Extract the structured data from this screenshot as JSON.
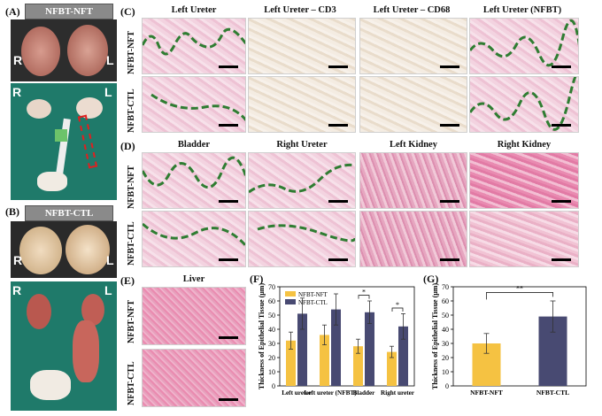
{
  "panels": {
    "A": {
      "tag": "(A)",
      "title": "NFBT-NFT",
      "R": "R",
      "L": "L"
    },
    "B": {
      "tag": "(B)",
      "title": "NFBT-CTL",
      "R": "R",
      "L": "L"
    },
    "C": {
      "tag": "(C)",
      "cols": [
        "Left Ureter",
        "Left Ureter – CD3",
        "Left Ureter – CD68",
        "Left Ureter  (NFBT)"
      ],
      "rows": [
        "NFBT-NFT",
        "NFBT-CTL"
      ]
    },
    "D": {
      "tag": "(D)",
      "cols": [
        "Bladder",
        "Right Ureter",
        "Left Kidney",
        "Right Kidney"
      ],
      "rows": [
        "NFBT-NFT",
        "NFBT-CTL"
      ]
    },
    "E": {
      "tag": "(E)",
      "title": "Liver",
      "rows": [
        "NFBT-NFT",
        "NFBT-CTL"
      ]
    },
    "F": {
      "tag": "(F)"
    },
    "G": {
      "tag": "(G)"
    }
  },
  "chart_data": [
    {
      "id": "F",
      "type": "bar",
      "categories": [
        "Left ureter",
        "Left ureter (NFBT)",
        "Bladder",
        "Right ureter"
      ],
      "series": [
        {
          "name": "NFBT-NFT",
          "values": [
            32,
            36,
            28,
            24
          ],
          "errors": [
            6,
            7,
            5,
            4
          ],
          "color": "#f5c242"
        },
        {
          "name": "NFBT-CTL",
          "values": [
            51,
            54,
            52,
            42
          ],
          "errors": [
            11,
            11,
            8,
            9
          ],
          "color": "#484a72"
        }
      ],
      "ylabel": "Thickness of Epithelial Tissue (μm)",
      "ylim": [
        0,
        70
      ],
      "yticks": [
        0,
        10,
        20,
        30,
        40,
        50,
        60,
        70
      ],
      "significance": [
        "",
        "",
        "*",
        "*"
      ],
      "legend": "top-left"
    },
    {
      "id": "G",
      "type": "bar",
      "categories": [
        "NFBT-NFT",
        "NFBT-CTL"
      ],
      "values": [
        30,
        49
      ],
      "errors": [
        7,
        11
      ],
      "colors": [
        "#f5c242",
        "#484a72"
      ],
      "ylabel": "Thickness of Epithelial Tissue (μm)",
      "ylim": [
        0,
        70
      ],
      "yticks": [
        0,
        10,
        20,
        30,
        40,
        50,
        60,
        70
      ],
      "significance": "**"
    }
  ]
}
